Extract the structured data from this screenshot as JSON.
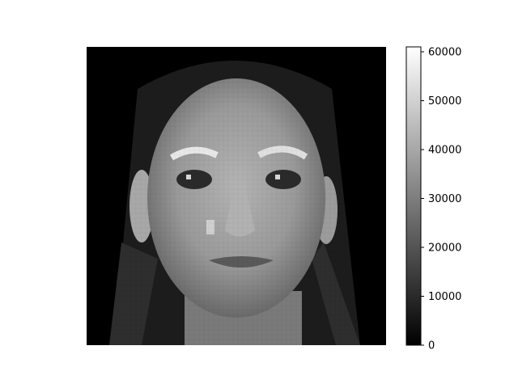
{
  "chart_data": {
    "type": "heatmap",
    "colormap": "gray",
    "image_content": "grayscale pixelated photograph of a face",
    "axes_visible": false,
    "colorbar": {
      "vmin": 0,
      "vmax": 61000,
      "ticks": [
        0,
        10000,
        20000,
        30000,
        40000,
        50000,
        60000
      ],
      "tick_labels": [
        "0",
        "10000",
        "20000",
        "30000",
        "40000",
        "50000",
        "60000"
      ]
    }
  }
}
